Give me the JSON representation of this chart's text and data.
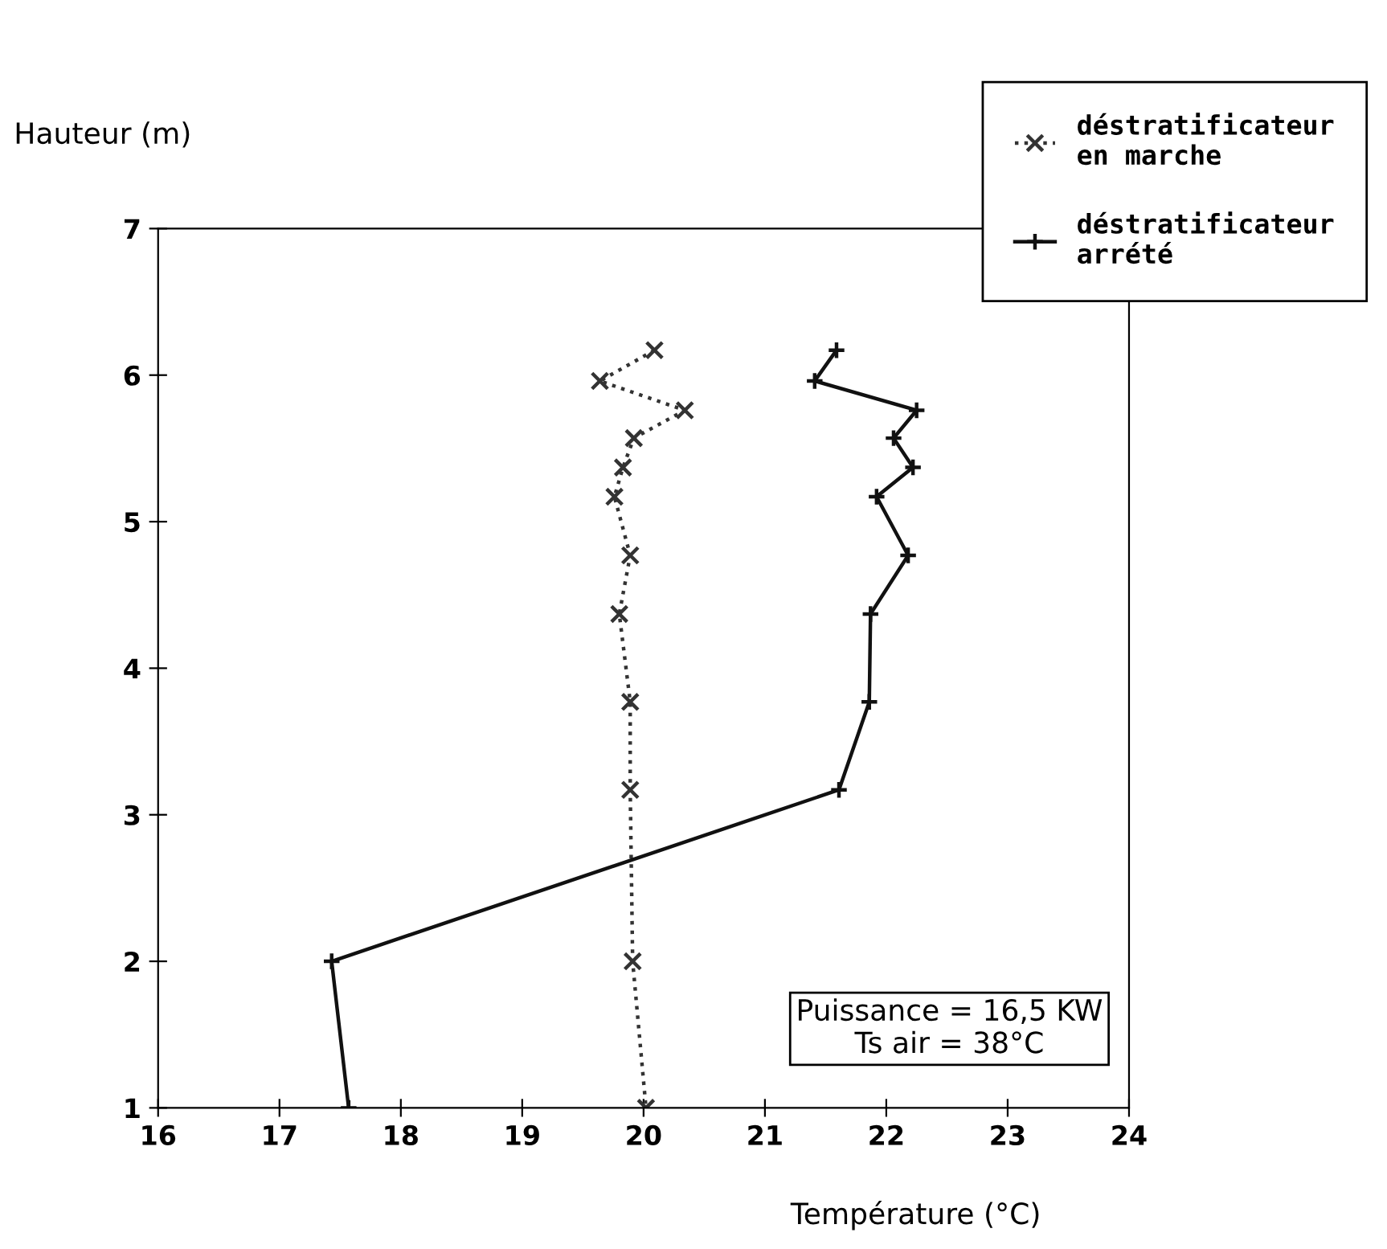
{
  "chart_data": {
    "type": "line",
    "xlabel": "Température (°C)",
    "ylabel": "Hauteur (m)",
    "xlim": [
      16,
      24
    ],
    "xticks": [
      16,
      17,
      18,
      19,
      20,
      21,
      22,
      23,
      24
    ],
    "ylim": [
      1,
      7
    ],
    "yticks": [
      1,
      2,
      3,
      4,
      5,
      6,
      7
    ],
    "grid": false,
    "legend": "top right",
    "annotations": [
      "Puissance = 16,5 KW\nTs air = 38°C"
    ],
    "series": [
      {
        "name": "déstratificateur\nen marche",
        "color": "#333333",
        "marker": "cross",
        "line_style": "dotted",
        "x": [
          20.09,
          19.64,
          20.34,
          19.92,
          19.83,
          19.76,
          19.89,
          19.8,
          19.89,
          19.89,
          19.91,
          20.02
        ],
        "values": [
          6.17,
          5.96,
          5.76,
          5.57,
          5.37,
          5.17,
          4.77,
          4.37,
          3.77,
          3.17,
          2.0,
          1.0
        ]
      },
      {
        "name": "déstratificateur\narrété",
        "color": "#111111",
        "marker": "plus",
        "line_style": "solid",
        "x": [
          21.59,
          21.41,
          22.25,
          22.06,
          22.22,
          21.92,
          22.18,
          21.87,
          21.86,
          21.61,
          17.43,
          17.57
        ],
        "values": [
          6.17,
          5.96,
          5.76,
          5.57,
          5.37,
          5.17,
          4.77,
          4.37,
          3.77,
          3.17,
          2.0,
          1.0
        ]
      }
    ]
  }
}
